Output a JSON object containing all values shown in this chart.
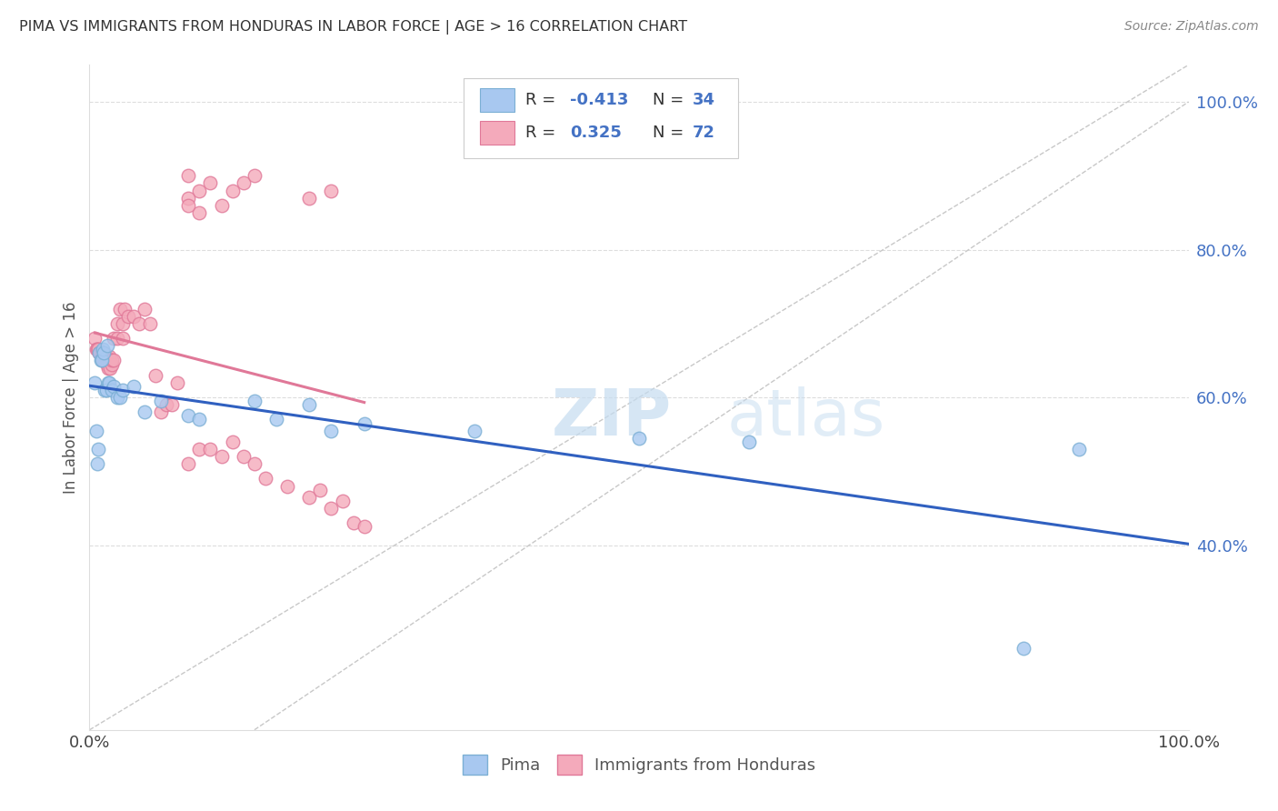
{
  "title": "PIMA VS IMMIGRANTS FROM HONDURAS IN LABOR FORCE | AGE > 16 CORRELATION CHART",
  "source": "Source: ZipAtlas.com",
  "ylabel": "In Labor Force | Age > 16",
  "pima_color": "#A8C8F0",
  "pima_edge_color": "#7BAFD4",
  "honduras_color": "#F4AABB",
  "honduras_edge_color": "#E07898",
  "pima_line_color": "#3060C0",
  "honduras_line_color": "#E07898",
  "diagonal_line_color": "#C8C8C8",
  "background_color": "#FFFFFF",
  "watermark_zip": "ZIP",
  "watermark_atlas": "atlas",
  "pima_R": -0.413,
  "pima_N": 34,
  "honduras_R": 0.325,
  "honduras_N": 72,
  "pima_points": [
    [
      0.005,
      0.62
    ],
    [
      0.006,
      0.555
    ],
    [
      0.007,
      0.51
    ],
    [
      0.008,
      0.53
    ],
    [
      0.009,
      0.66
    ],
    [
      0.01,
      0.65
    ],
    [
      0.011,
      0.65
    ],
    [
      0.012,
      0.665
    ],
    [
      0.013,
      0.66
    ],
    [
      0.014,
      0.61
    ],
    [
      0.015,
      0.61
    ],
    [
      0.016,
      0.67
    ],
    [
      0.017,
      0.62
    ],
    [
      0.018,
      0.62
    ],
    [
      0.02,
      0.61
    ],
    [
      0.022,
      0.615
    ],
    [
      0.025,
      0.6
    ],
    [
      0.028,
      0.6
    ],
    [
      0.03,
      0.61
    ],
    [
      0.04,
      0.615
    ],
    [
      0.05,
      0.58
    ],
    [
      0.065,
      0.595
    ],
    [
      0.09,
      0.575
    ],
    [
      0.1,
      0.57
    ],
    [
      0.15,
      0.595
    ],
    [
      0.17,
      0.57
    ],
    [
      0.2,
      0.59
    ],
    [
      0.22,
      0.555
    ],
    [
      0.25,
      0.565
    ],
    [
      0.35,
      0.555
    ],
    [
      0.5,
      0.545
    ],
    [
      0.6,
      0.54
    ],
    [
      0.85,
      0.26
    ],
    [
      0.9,
      0.53
    ]
  ],
  "honduras_points": [
    [
      0.005,
      0.68
    ],
    [
      0.006,
      0.665
    ],
    [
      0.007,
      0.665
    ],
    [
      0.008,
      0.665
    ],
    [
      0.009,
      0.66
    ],
    [
      0.01,
      0.66
    ],
    [
      0.01,
      0.66
    ],
    [
      0.011,
      0.655
    ],
    [
      0.011,
      0.66
    ],
    [
      0.012,
      0.655
    ],
    [
      0.012,
      0.66
    ],
    [
      0.013,
      0.655
    ],
    [
      0.013,
      0.65
    ],
    [
      0.014,
      0.65
    ],
    [
      0.014,
      0.655
    ],
    [
      0.015,
      0.65
    ],
    [
      0.015,
      0.655
    ],
    [
      0.016,
      0.65
    ],
    [
      0.016,
      0.645
    ],
    [
      0.017,
      0.65
    ],
    [
      0.017,
      0.64
    ],
    [
      0.018,
      0.65
    ],
    [
      0.018,
      0.655
    ],
    [
      0.019,
      0.65
    ],
    [
      0.019,
      0.64
    ],
    [
      0.02,
      0.645
    ],
    [
      0.02,
      0.65
    ],
    [
      0.022,
      0.65
    ],
    [
      0.022,
      0.68
    ],
    [
      0.025,
      0.7
    ],
    [
      0.025,
      0.68
    ],
    [
      0.028,
      0.72
    ],
    [
      0.03,
      0.7
    ],
    [
      0.03,
      0.68
    ],
    [
      0.032,
      0.72
    ],
    [
      0.035,
      0.71
    ],
    [
      0.04,
      0.71
    ],
    [
      0.045,
      0.7
    ],
    [
      0.05,
      0.72
    ],
    [
      0.055,
      0.7
    ],
    [
      0.06,
      0.63
    ],
    [
      0.065,
      0.58
    ],
    [
      0.07,
      0.59
    ],
    [
      0.075,
      0.59
    ],
    [
      0.08,
      0.62
    ],
    [
      0.09,
      0.51
    ],
    [
      0.1,
      0.53
    ],
    [
      0.11,
      0.53
    ],
    [
      0.12,
      0.52
    ],
    [
      0.13,
      0.54
    ],
    [
      0.14,
      0.52
    ],
    [
      0.15,
      0.51
    ],
    [
      0.16,
      0.49
    ],
    [
      0.18,
      0.48
    ],
    [
      0.2,
      0.465
    ],
    [
      0.21,
      0.475
    ],
    [
      0.22,
      0.45
    ],
    [
      0.23,
      0.46
    ],
    [
      0.24,
      0.43
    ],
    [
      0.25,
      0.425
    ],
    [
      0.09,
      0.9
    ],
    [
      0.1,
      0.88
    ],
    [
      0.11,
      0.89
    ],
    [
      0.13,
      0.88
    ],
    [
      0.14,
      0.89
    ],
    [
      0.15,
      0.9
    ],
    [
      0.12,
      0.86
    ],
    [
      0.09,
      0.87
    ],
    [
      0.1,
      0.85
    ],
    [
      0.09,
      0.86
    ],
    [
      0.2,
      0.87
    ],
    [
      0.22,
      0.88
    ]
  ],
  "xlim": [
    0,
    1.0
  ],
  "ylim": [
    0.15,
    1.05
  ],
  "yticks": [
    0.4,
    0.6,
    0.8,
    1.0
  ],
  "ytick_labels": [
    "40.0%",
    "60.0%",
    "80.0%",
    "100.0%"
  ],
  "xticks": [
    0,
    1.0
  ],
  "xtick_labels": [
    "0.0%",
    "100.0%"
  ]
}
